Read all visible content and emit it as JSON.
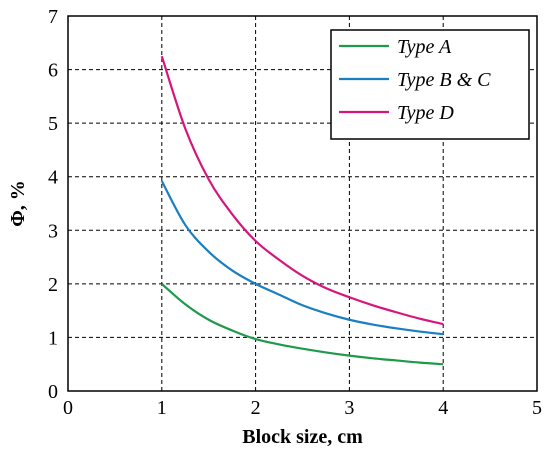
{
  "chart_data": {
    "type": "line",
    "title": "",
    "xlabel": "Block size, cm",
    "ylabel": "Φ, %",
    "xlim": [
      0,
      5
    ],
    "ylim": [
      0,
      7
    ],
    "xticks": [
      0,
      1,
      2,
      3,
      4,
      5
    ],
    "yticks": [
      0,
      1,
      2,
      3,
      4,
      5,
      6,
      7
    ],
    "grid": true,
    "legend_position": "top-right",
    "series": [
      {
        "name": "Type A",
        "color": "#1f9a4a",
        "x": [
          1.0,
          1.25,
          1.5,
          1.75,
          2.0,
          2.25,
          2.5,
          2.75,
          3.0,
          3.25,
          3.5,
          3.75,
          4.0
        ],
        "y": [
          2.0,
          1.62,
          1.33,
          1.13,
          0.97,
          0.87,
          0.79,
          0.72,
          0.66,
          0.61,
          0.57,
          0.53,
          0.5
        ]
      },
      {
        "name": "Type B & C",
        "color": "#1a7fc1",
        "x": [
          1.0,
          1.25,
          1.5,
          1.75,
          2.0,
          2.25,
          2.5,
          2.75,
          3.0,
          3.25,
          3.5,
          3.75,
          4.0
        ],
        "y": [
          3.92,
          3.1,
          2.6,
          2.25,
          2.0,
          1.8,
          1.6,
          1.45,
          1.33,
          1.24,
          1.17,
          1.11,
          1.06
        ]
      },
      {
        "name": "Type D",
        "color": "#d6167d",
        "x": [
          1.0,
          1.25,
          1.5,
          1.75,
          2.0,
          2.25,
          2.5,
          2.75,
          3.0,
          3.25,
          3.5,
          3.75,
          4.0
        ],
        "y": [
          6.25,
          4.9,
          3.95,
          3.3,
          2.8,
          2.45,
          2.15,
          1.92,
          1.75,
          1.6,
          1.47,
          1.35,
          1.25
        ]
      }
    ]
  }
}
